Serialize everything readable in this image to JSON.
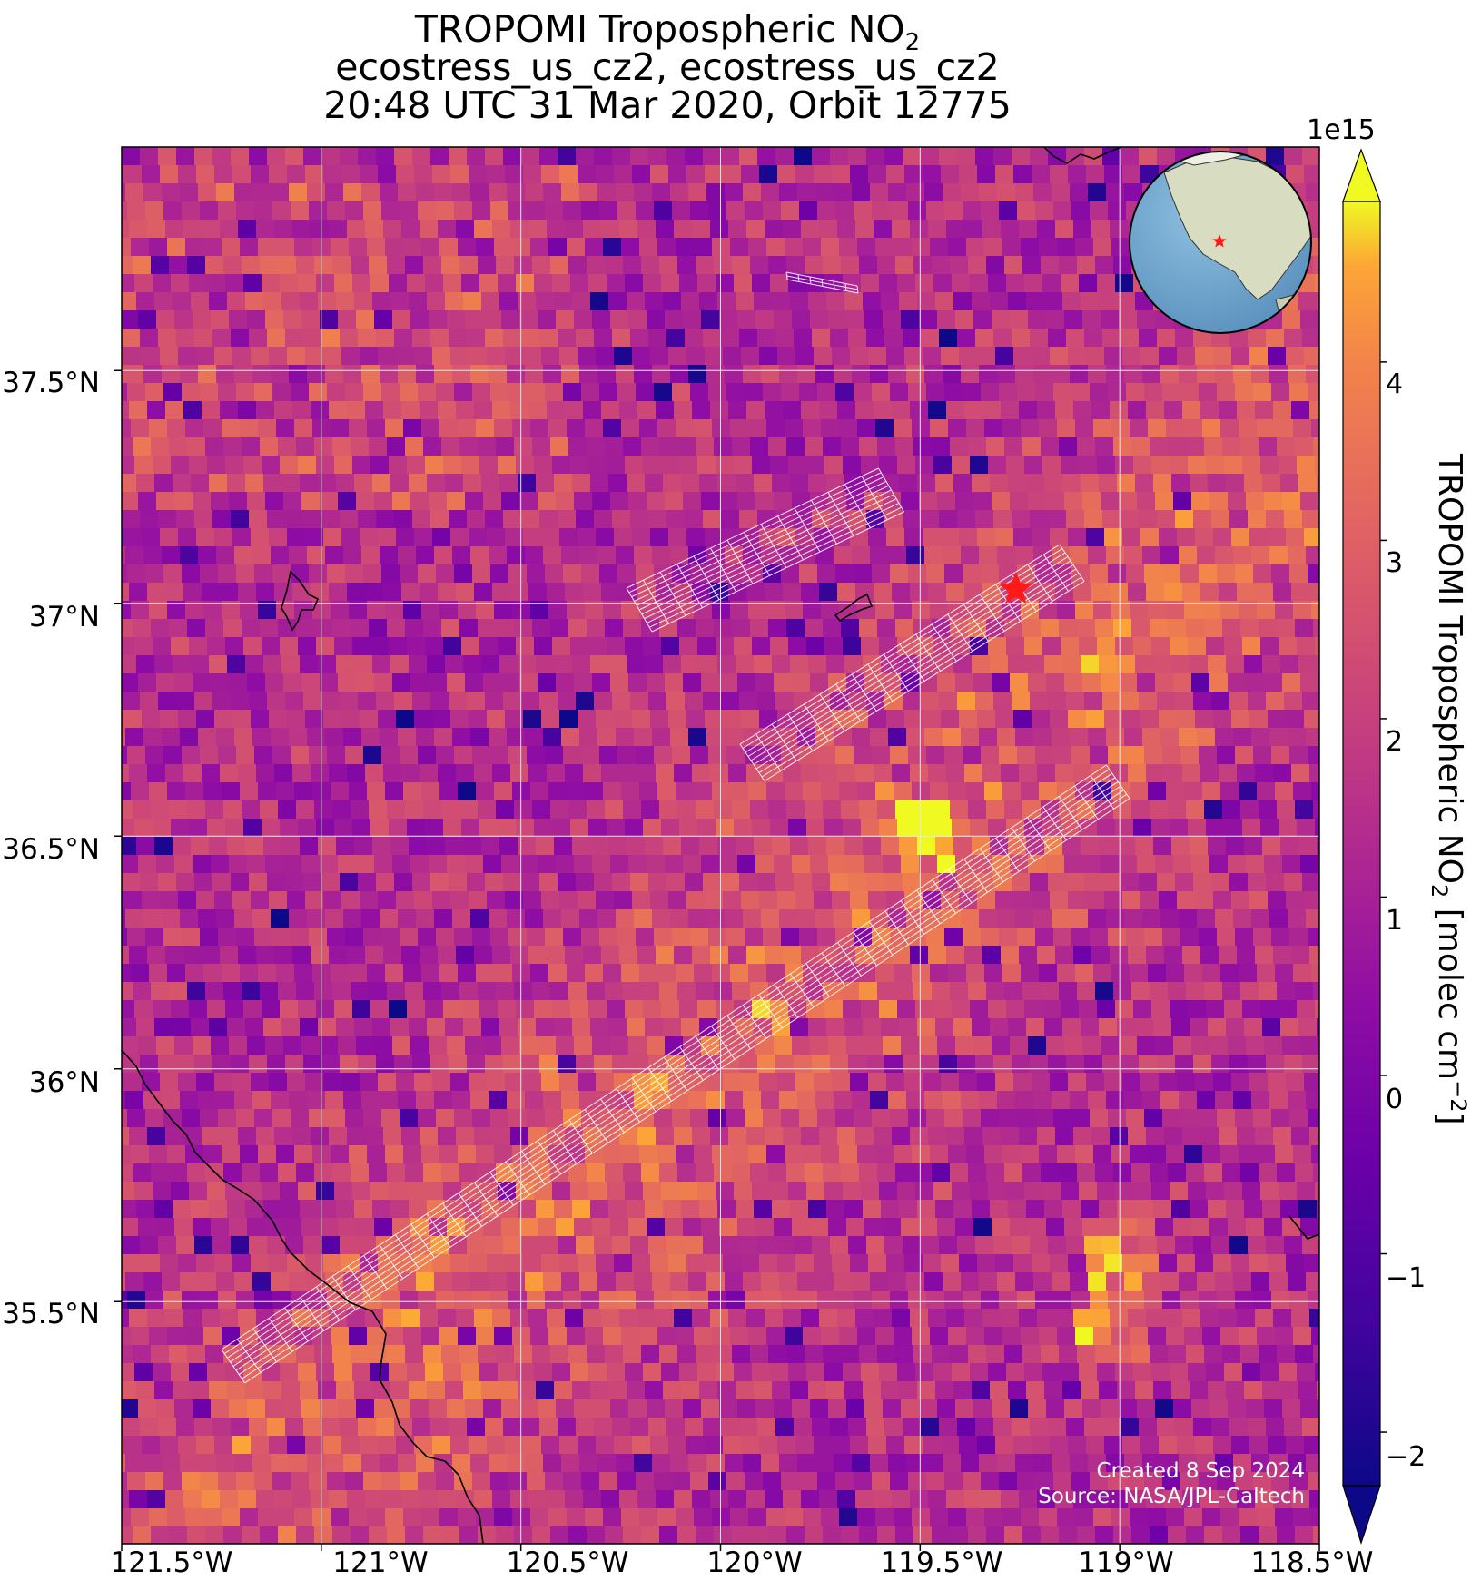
{
  "title": {
    "line1_main": "TROPOMI Tropospheric NO",
    "line1_sub": "2",
    "line2": "ecostress_us_cz2, ecostress_us_cz2",
    "line3": "20:48 UTC 31 Mar 2020, Orbit 12775"
  },
  "axes": {
    "x_ticks": [
      "121.5°W",
      "121°W",
      "120.5°W",
      "120°W",
      "119.5°W",
      "119°W",
      "118.5°W"
    ],
    "y_ticks": [
      "37.5°N",
      "37°N",
      "36.5°N",
      "36°N",
      "35.5°N"
    ],
    "x_range_deg": [
      -121.5,
      -118.5
    ],
    "y_range_deg": [
      34.98,
      37.98
    ]
  },
  "colorbar": {
    "exponent": "1e15",
    "ticks": [
      "4",
      "3",
      "2",
      "1",
      "0",
      "−1",
      "−2"
    ],
    "range": [
      -2.3,
      4.9
    ],
    "colormap": "plasma",
    "extend": "both",
    "label_main": "TROPOMI Tropospheric NO",
    "label_sub": "2",
    "label_units": " [molec cm",
    "label_sup": "−2",
    "label_end": "]"
  },
  "credits": {
    "created": "Created 8 Sep 2024",
    "source": "Source: NASA/JPL-Caltech"
  },
  "site_marker": {
    "lon": -119.26,
    "lat": 37.03,
    "color": "#ff1a1a",
    "symbol": "star"
  },
  "colors": {
    "grid": "#e8e8e8",
    "coastline": "#000000",
    "footprint": "#ffffff",
    "ocean": "#6aa4cc",
    "land": "#cfd7b8"
  }
}
